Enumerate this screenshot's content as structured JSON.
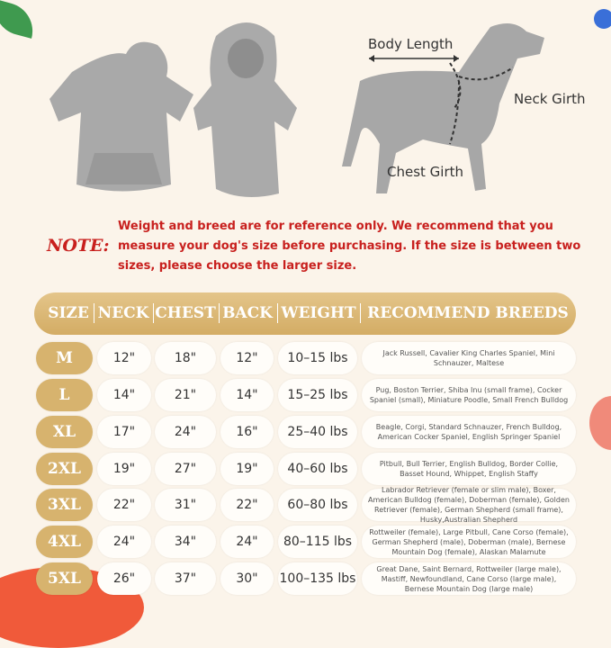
{
  "diagram": {
    "body_length": "Body Length",
    "neck_girth": "Neck Girth",
    "chest_girth": "Chest Girth"
  },
  "note": {
    "title": "NOTE:",
    "text": "Weight and breed are for reference only. We recommend that you measure your dog's size before purchasing. If the size is between two sizes, please choose the larger size."
  },
  "table": {
    "headers": [
      "SIZE",
      "NECK",
      "CHEST",
      "BACK",
      "WEIGHT",
      "RECOMMEND BREEDS"
    ],
    "rows": [
      [
        "M",
        "12\"",
        "18\"",
        "12\"",
        "10–15 lbs",
        "Jack Russell, Cavalier King Charles Spaniel, Mini Schnauzer, Maltese"
      ],
      [
        "L",
        "14\"",
        "21\"",
        "14\"",
        "15–25 lbs",
        "Pug, Boston Terrier, Shiba Inu (small frame), Cocker Spaniel (small), Miniature Poodle, Small French Bulldog"
      ],
      [
        "XL",
        "17\"",
        "24\"",
        "16\"",
        "25–40 lbs",
        "Beagle, Corgi, Standard Schnauzer, French Bulldog, American Cocker Spaniel, English Springer Spaniel"
      ],
      [
        "2XL",
        "19\"",
        "27\"",
        "19\"",
        "40–60 lbs",
        "Pitbull, Bull Terrier, English Bulldog, Border Collie, Basset Hound, Whippet, English Staffy"
      ],
      [
        "3XL",
        "22\"",
        "31\"",
        "22\"",
        "60–80 lbs",
        "Labrador Retriever (female or slim male), Boxer, American Bulldog (female), Doberman (female), Golden Retriever (female), German Shepherd (small frame), Husky,Australian Shepherd"
      ],
      [
        "4XL",
        "24\"",
        "34\"",
        "24\"",
        "80–115 lbs",
        "Rottweiler (female), Large Pitbull, Cane Corso (female), German Shepherd (male), Doberman (male), Bernese Mountain Dog (female), Alaskan Malamute"
      ],
      [
        "5XL",
        "26\"",
        "37\"",
        "30\"",
        "100–135 lbs",
        "Great Dane, Saint Bernard, Rottweiler (large male), Mastiff, Newfoundland, Cane Corso (large male), Bernese Mountain Dog (large male)"
      ]
    ]
  },
  "colors": {
    "gold": "#d7b36e",
    "note_red": "#c8201e",
    "background": "#fbf4ea",
    "product_gray": "#a9a9a9"
  }
}
